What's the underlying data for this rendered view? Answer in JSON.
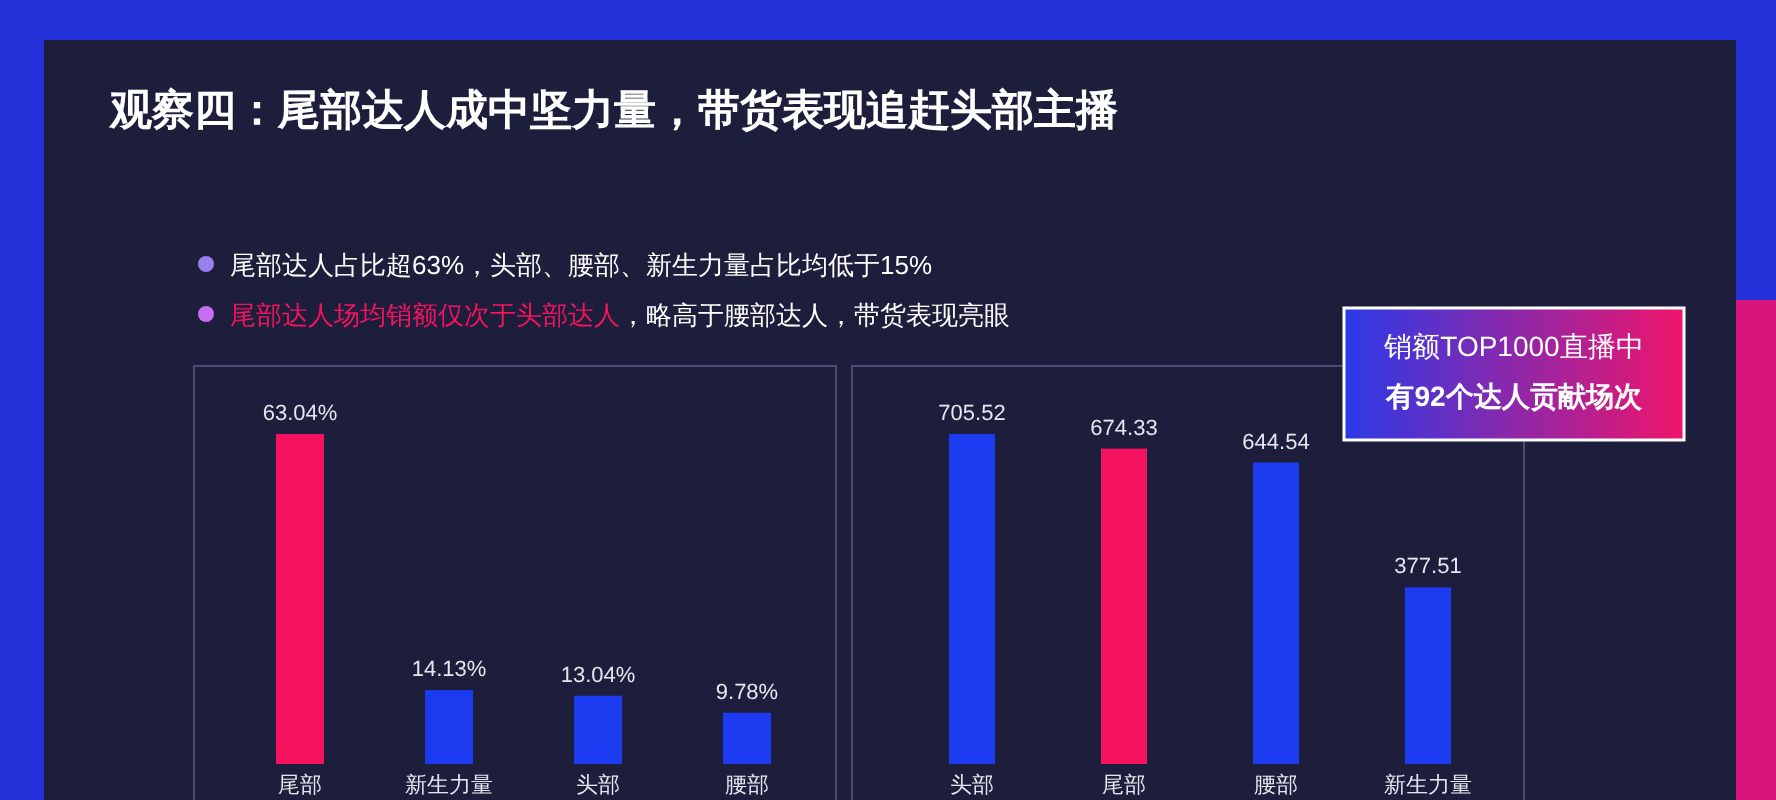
{
  "chart_data": [
    {
      "type": "bar",
      "title": "观察四：尾部达人成中坚力量，带货表现追赶头部主播",
      "annotations": [
        "尾部达人占比超63%，头部、腰部、新生力量占比均低于15%",
        "尾部达人场均销额仅次于头部达人",
        "，略高于腰部达人，带货表现亮眼"
      ],
      "categories": [
        "尾部",
        "新生力量",
        "头部",
        "腰部"
      ],
      "values": [
        63.04,
        14.13,
        13.04,
        9.78
      ],
      "colors": [
        "#f5135f",
        "#1c3bf0",
        "#1c3bf0",
        "#1c3bf0"
      ],
      "value_labels": [
        "63.04%",
        "14.13%",
        "13.04%",
        "9.78%"
      ]
    },
    {
      "type": "bar",
      "annotations": [
        "销额TOP1000直播中",
        "有92个达人贡献场次"
      ],
      "categories": [
        "头部",
        "尾部",
        "腰部",
        "新生力量"
      ],
      "values": [
        705.52,
        674.33,
        644.54,
        377.51
      ],
      "colors": [
        "#1c3bf0",
        "#f5135f",
        "#1c3bf0",
        "#1c3bf0"
      ],
      "data_labels": true
    }
  ]
}
